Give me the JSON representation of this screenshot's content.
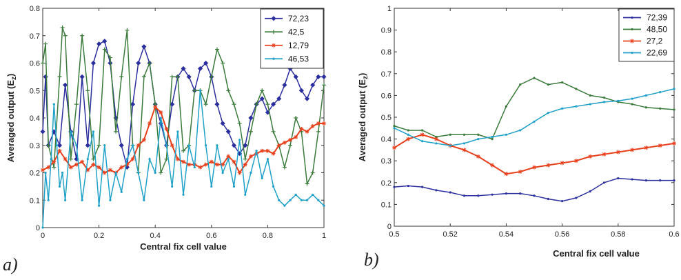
{
  "panels": [
    {
      "label": "a)",
      "chart_data": {
        "type": "line",
        "xlabel": "Central fix cell value",
        "ylabel": "Averaged output (E",
        "ylabel_sub": "z",
        "ylabel_close": ")",
        "xlim": [
          0,
          1
        ],
        "ylim": [
          0,
          0.8
        ],
        "xticks": [
          0,
          0.2,
          0.4,
          0.6,
          0.8,
          1
        ],
        "xtick_labels": [
          "0",
          "0.2",
          "0.4",
          "0.6",
          "0.8",
          "1"
        ],
        "yticks": [
          0,
          0.1,
          0.2,
          0.3,
          0.4,
          0.5,
          0.6,
          0.7,
          0.8
        ],
        "ytick_labels": [
          "0",
          "0.1",
          "0.2",
          "0.3",
          "0.4",
          "0.5",
          "0.6",
          "0.7",
          "0.8"
        ],
        "grid": false,
        "legend_position": "top-right",
        "series": [
          {
            "name": "72,23",
            "color": "#2b2f9e",
            "marker": "diamond",
            "x": [
              0,
              0.01,
              0.02,
              0.04,
              0.06,
              0.08,
              0.1,
              0.12,
              0.14,
              0.16,
              0.18,
              0.2,
              0.22,
              0.24,
              0.26,
              0.28,
              0.3,
              0.32,
              0.34,
              0.36,
              0.38,
              0.4,
              0.42,
              0.44,
              0.46,
              0.48,
              0.5,
              0.52,
              0.54,
              0.56,
              0.58,
              0.6,
              0.62,
              0.64,
              0.66,
              0.68,
              0.7,
              0.72,
              0.74,
              0.76,
              0.78,
              0.8,
              0.82,
              0.84,
              0.86,
              0.88,
              0.9,
              0.92,
              0.94,
              0.96,
              0.98,
              1
            ],
            "y": [
              0.35,
              0.55,
              0.3,
              0.35,
              0.3,
              0.52,
              0.35,
              0.25,
              0.55,
              0.3,
              0.6,
              0.67,
              0.68,
              0.6,
              0.4,
              0.3,
              0.22,
              0.45,
              0.6,
              0.66,
              0.6,
              0.45,
              0.38,
              0.3,
              0.45,
              0.55,
              0.58,
              0.55,
              0.5,
              0.58,
              0.6,
              0.55,
              0.45,
              0.38,
              0.35,
              0.3,
              0.27,
              0.3,
              0.4,
              0.45,
              0.47,
              0.42,
              0.45,
              0.47,
              0.52,
              0.58,
              0.55,
              0.5,
              0.47,
              0.52,
              0.55,
              0.55
            ]
          },
          {
            "name": "42,5",
            "color": "#3a7a3a",
            "marker": "plus",
            "x": [
              0,
              0.01,
              0.02,
              0.04,
              0.06,
              0.07,
              0.08,
              0.1,
              0.12,
              0.14,
              0.16,
              0.18,
              0.2,
              0.22,
              0.24,
              0.26,
              0.28,
              0.3,
              0.32,
              0.34,
              0.36,
              0.38,
              0.4,
              0.42,
              0.44,
              0.46,
              0.48,
              0.5,
              0.52,
              0.54,
              0.56,
              0.58,
              0.6,
              0.62,
              0.64,
              0.66,
              0.68,
              0.7,
              0.72,
              0.74,
              0.76,
              0.78,
              0.8,
              0.82,
              0.84,
              0.86,
              0.88,
              0.9,
              0.92,
              0.94,
              0.96,
              0.98,
              1
            ],
            "y": [
              0.6,
              0.67,
              0.3,
              0.22,
              0.55,
              0.73,
              0.7,
              0.25,
              0.45,
              0.7,
              0.5,
              0.25,
              0.3,
              0.65,
              0.62,
              0.35,
              0.55,
              0.72,
              0.3,
              0.2,
              0.55,
              0.6,
              0.45,
              0.2,
              0.25,
              0.55,
              0.55,
              0.28,
              0.3,
              0.5,
              0.5,
              0.45,
              0.55,
              0.65,
              0.6,
              0.5,
              0.45,
              0.38,
              0.25,
              0.35,
              0.45,
              0.5,
              0.45,
              0.35,
              0.3,
              0.22,
              0.3,
              0.4,
              0.35,
              0.16,
              0.2,
              0.35,
              0.52
            ]
          },
          {
            "name": "12,79",
            "color": "#e8401c",
            "marker": "star",
            "x": [
              0,
              0.02,
              0.04,
              0.06,
              0.08,
              0.1,
              0.12,
              0.14,
              0.16,
              0.18,
              0.2,
              0.22,
              0.24,
              0.26,
              0.28,
              0.3,
              0.32,
              0.34,
              0.36,
              0.38,
              0.4,
              0.42,
              0.44,
              0.46,
              0.48,
              0.5,
              0.52,
              0.54,
              0.56,
              0.58,
              0.6,
              0.62,
              0.64,
              0.66,
              0.68,
              0.7,
              0.72,
              0.74,
              0.76,
              0.78,
              0.8,
              0.82,
              0.84,
              0.86,
              0.88,
              0.9,
              0.92,
              0.94,
              0.96,
              0.98,
              1
            ],
            "y": [
              0.21,
              0.22,
              0.24,
              0.28,
              0.25,
              0.22,
              0.23,
              0.24,
              0.21,
              0.23,
              0.22,
              0.2,
              0.21,
              0.2,
              0.22,
              0.23,
              0.25,
              0.3,
              0.32,
              0.38,
              0.44,
              0.42,
              0.36,
              0.3,
              0.25,
              0.24,
              0.23,
              0.23,
              0.22,
              0.23,
              0.24,
              0.23,
              0.23,
              0.26,
              0.24,
              0.2,
              0.23,
              0.26,
              0.27,
              0.28,
              0.28,
              0.27,
              0.3,
              0.31,
              0.32,
              0.33,
              0.36,
              0.35,
              0.37,
              0.38,
              0.38
            ]
          },
          {
            "name": "46,53",
            "color": "#1ea0c8",
            "marker": "dot",
            "x": [
              0,
              0.01,
              0.02,
              0.03,
              0.04,
              0.05,
              0.06,
              0.07,
              0.08,
              0.1,
              0.12,
              0.14,
              0.16,
              0.18,
              0.2,
              0.22,
              0.24,
              0.26,
              0.28,
              0.3,
              0.32,
              0.34,
              0.36,
              0.38,
              0.4,
              0.42,
              0.44,
              0.46,
              0.48,
              0.5,
              0.52,
              0.54,
              0.56,
              0.58,
              0.6,
              0.62,
              0.64,
              0.66,
              0.68,
              0.7,
              0.72,
              0.74,
              0.76,
              0.78,
              0.8,
              0.82,
              0.84,
              0.86,
              0.88,
              0.9,
              0.92,
              0.94,
              0.96,
              0.98,
              1
            ],
            "y": [
              0,
              0.2,
              0.1,
              0.25,
              0.45,
              0.3,
              0.15,
              0.2,
              0.1,
              0.35,
              0.3,
              0.1,
              0.25,
              0.35,
              0.08,
              0.3,
              0.1,
              0.2,
              0.13,
              0.25,
              0.3,
              0.2,
              0.1,
              0.25,
              0.2,
              0.4,
              0.3,
              0.15,
              0.35,
              0.12,
              0.3,
              0.22,
              0.5,
              0.3,
              0.15,
              0.3,
              0.2,
              0.25,
              0.15,
              0.32,
              0.12,
              0.2,
              0.28,
              0.18,
              0.25,
              0.15,
              0.1,
              0.08,
              0.1,
              0.12,
              0.1,
              0.1,
              0.12,
              0.1,
              0.08
            ]
          }
        ]
      }
    },
    {
      "label": "b)",
      "chart_data": {
        "type": "line",
        "xlabel": "Central fix cell value",
        "ylabel": "Averaged output (E",
        "ylabel_sub": "z",
        "ylabel_close": ")",
        "xlim": [
          0.5,
          0.6
        ],
        "ylim": [
          0,
          1
        ],
        "xticks": [
          0.5,
          0.52,
          0.54,
          0.56,
          0.58,
          0.6
        ],
        "xtick_labels": [
          "0.5",
          "0.52",
          "0.54",
          "0.56",
          "0.58",
          "0.6"
        ],
        "yticks": [
          0,
          0.1,
          0.2,
          0.3,
          0.4,
          0.5,
          0.6,
          0.7,
          0.8,
          0.9,
          1
        ],
        "ytick_labels": [
          "0",
          "0.1",
          "0.2",
          "0.3",
          "0.4",
          "0.5",
          "0.6",
          "0.7",
          "0.8",
          "0.9",
          "1"
        ],
        "grid": false,
        "legend_position": "top-right",
        "series": [
          {
            "name": "72,39",
            "color": "#2b2f9e",
            "marker": "dot",
            "x": [
              0.5,
              0.505,
              0.51,
              0.515,
              0.52,
              0.525,
              0.53,
              0.535,
              0.54,
              0.545,
              0.55,
              0.555,
              0.56,
              0.565,
              0.57,
              0.575,
              0.58,
              0.585,
              0.59,
              0.595,
              0.6
            ],
            "y": [
              0.18,
              0.185,
              0.18,
              0.165,
              0.155,
              0.14,
              0.14,
              0.145,
              0.15,
              0.15,
              0.14,
              0.125,
              0.115,
              0.13,
              0.16,
              0.2,
              0.22,
              0.215,
              0.21,
              0.21,
              0.21
            ]
          },
          {
            "name": "48,50",
            "color": "#3a7a3a",
            "marker": "dot",
            "x": [
              0.5,
              0.505,
              0.51,
              0.515,
              0.52,
              0.525,
              0.53,
              0.535,
              0.54,
              0.545,
              0.55,
              0.555,
              0.56,
              0.565,
              0.57,
              0.575,
              0.58,
              0.585,
              0.59,
              0.595,
              0.6
            ],
            "y": [
              0.46,
              0.44,
              0.44,
              0.41,
              0.42,
              0.42,
              0.42,
              0.4,
              0.55,
              0.65,
              0.68,
              0.65,
              0.66,
              0.63,
              0.6,
              0.59,
              0.57,
              0.56,
              0.545,
              0.54,
              0.535
            ]
          },
          {
            "name": "27,2",
            "color": "#e8401c",
            "marker": "star",
            "x": [
              0.5,
              0.505,
              0.51,
              0.515,
              0.52,
              0.525,
              0.53,
              0.535,
              0.54,
              0.545,
              0.55,
              0.555,
              0.56,
              0.565,
              0.57,
              0.575,
              0.58,
              0.585,
              0.59,
              0.595,
              0.6
            ],
            "y": [
              0.36,
              0.4,
              0.42,
              0.4,
              0.37,
              0.35,
              0.32,
              0.28,
              0.24,
              0.25,
              0.27,
              0.28,
              0.29,
              0.3,
              0.32,
              0.33,
              0.34,
              0.35,
              0.36,
              0.37,
              0.38
            ]
          },
          {
            "name": "22,69",
            "color": "#1ea0c8",
            "marker": "dot",
            "x": [
              0.5,
              0.505,
              0.51,
              0.515,
              0.52,
              0.525,
              0.53,
              0.535,
              0.54,
              0.545,
              0.55,
              0.555,
              0.56,
              0.565,
              0.57,
              0.575,
              0.58,
              0.585,
              0.59,
              0.595,
              0.6
            ],
            "y": [
              0.45,
              0.42,
              0.39,
              0.38,
              0.37,
              0.38,
              0.4,
              0.41,
              0.42,
              0.44,
              0.48,
              0.52,
              0.54,
              0.55,
              0.56,
              0.57,
              0.575,
              0.585,
              0.6,
              0.615,
              0.63
            ]
          }
        ]
      }
    }
  ]
}
